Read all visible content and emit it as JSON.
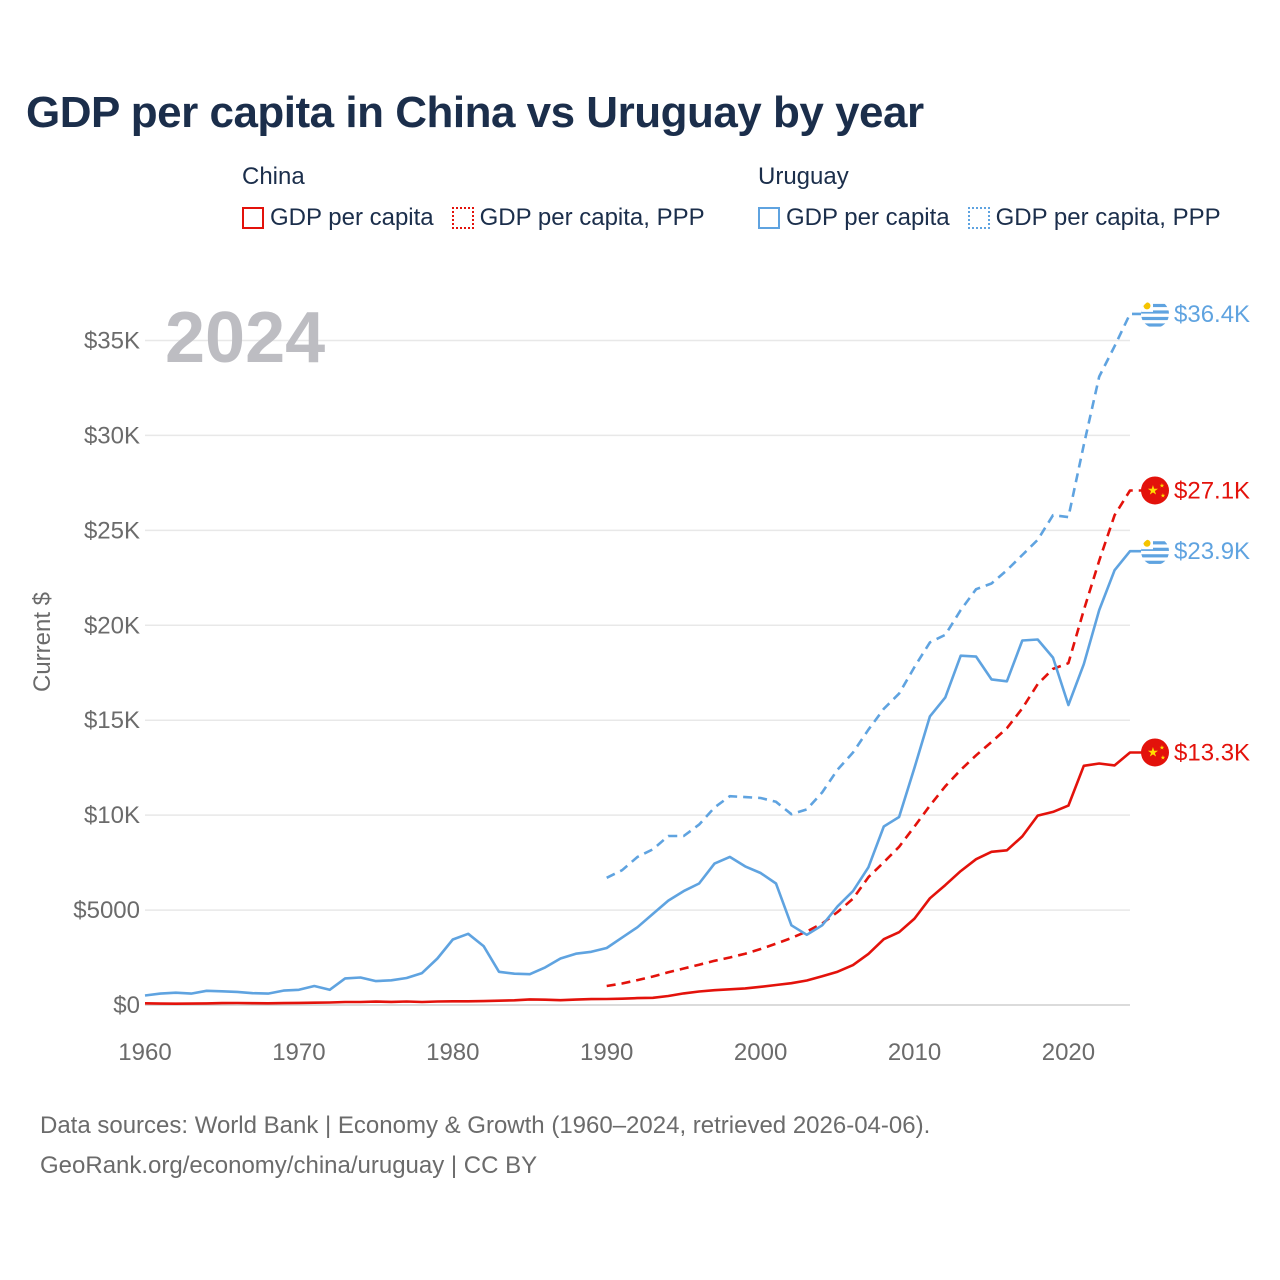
{
  "title": "GDP per capita in China vs Uruguay by year",
  "legend": {
    "groups": [
      {
        "country": "China",
        "color": "#e3120b",
        "items": [
          "GDP per capita",
          "GDP per capita, PPP"
        ]
      },
      {
        "country": "Uruguay",
        "color": "#5fa3e0",
        "items": [
          "GDP per capita",
          "GDP per capita, PPP"
        ]
      }
    ]
  },
  "source": {
    "line1": "Data sources: World Bank | Economy & Growth (1960–2024, retrieved 2026-04-06).",
    "line2": "GeoRank.org/economy/china/uruguay | CC BY"
  },
  "chart_data": {
    "type": "line",
    "title": "GDP per capita in China vs Uruguay by year",
    "year_label": "2024",
    "ylabel": "Current $",
    "xlabel": "",
    "xlim": [
      1960,
      2024
    ],
    "ylim": [
      0,
      36500
    ],
    "x_ticks": [
      1960,
      1970,
      1980,
      1990,
      2000,
      2010,
      2020
    ],
    "y_ticks": [
      {
        "value": 0,
        "label": "$0"
      },
      {
        "value": 5000,
        "label": "$5000"
      },
      {
        "value": 10000,
        "label": "$10K"
      },
      {
        "value": 15000,
        "label": "$15K"
      },
      {
        "value": 20000,
        "label": "$20K"
      },
      {
        "value": 25000,
        "label": "$25K"
      },
      {
        "value": 30000,
        "label": "$30K"
      },
      {
        "value": 35000,
        "label": "$35K"
      }
    ],
    "grid": true,
    "series": [
      {
        "name": "China GDP per capita",
        "country": "China",
        "style": "solid",
        "color": "#e3120b",
        "end_label": "$13.3K",
        "x": [
          1960,
          1961,
          1962,
          1963,
          1964,
          1965,
          1966,
          1967,
          1968,
          1969,
          1970,
          1971,
          1972,
          1973,
          1974,
          1975,
          1976,
          1977,
          1978,
          1979,
          1980,
          1981,
          1982,
          1983,
          1984,
          1985,
          1986,
          1987,
          1988,
          1989,
          1990,
          1991,
          1992,
          1993,
          1994,
          1995,
          1996,
          1997,
          1998,
          1999,
          2000,
          2001,
          2002,
          2003,
          2004,
          2005,
          2006,
          2007,
          2008,
          2009,
          2010,
          2011,
          2012,
          2013,
          2014,
          2015,
          2016,
          2017,
          2018,
          2019,
          2020,
          2021,
          2022,
          2023,
          2024
        ],
        "values": [
          89,
          76,
          70,
          74,
          85,
          98,
          104,
          96,
          91,
          100,
          113,
          119,
          132,
          157,
          160,
          178,
          165,
          185,
          156,
          183,
          195,
          197,
          203,
          225,
          250,
          294,
          281,
          252,
          284,
          311,
          318,
          333,
          366,
          377,
          473,
          609,
          709,
          782,
          829,
          873,
          959,
          1053,
          1149,
          1289,
          1509,
          1753,
          2099,
          2694,
          3468,
          3832,
          4550,
          5618,
          6317,
          7051,
          7679,
          8067,
          8148,
          8880,
          9977,
          10170,
          10500,
          12600,
          12720,
          12620,
          13300
        ]
      },
      {
        "name": "China GDP per capita, PPP",
        "country": "China",
        "style": "dashed",
        "color": "#e3120b",
        "end_label": "$27.1K",
        "x": [
          1990,
          1991,
          1992,
          1993,
          1994,
          1995,
          1996,
          1997,
          1998,
          1999,
          2000,
          2001,
          2002,
          2003,
          2004,
          2005,
          2006,
          2007,
          2008,
          2009,
          2010,
          2011,
          2012,
          2013,
          2014,
          2015,
          2016,
          2017,
          2018,
          2019,
          2020,
          2021,
          2022,
          2023,
          2024
        ],
        "values": [
          1000,
          1130,
          1310,
          1500,
          1720,
          1920,
          2120,
          2330,
          2500,
          2700,
          2950,
          3230,
          3530,
          3870,
          4290,
          4900,
          5600,
          6730,
          7520,
          8330,
          9400,
          10500,
          11520,
          12380,
          13150,
          13850,
          14580,
          15620,
          16900,
          17700,
          18000,
          20800,
          23400,
          25800,
          27100
        ]
      },
      {
        "name": "Uruguay GDP per capita",
        "country": "Uruguay",
        "style": "solid",
        "color": "#5fa3e0",
        "end_label": "$23.9K",
        "x": [
          1960,
          1961,
          1962,
          1963,
          1964,
          1965,
          1966,
          1967,
          1968,
          1969,
          1970,
          1971,
          1972,
          1973,
          1974,
          1975,
          1976,
          1977,
          1978,
          1979,
          1980,
          1981,
          1982,
          1983,
          1984,
          1985,
          1986,
          1987,
          1988,
          1989,
          1990,
          1991,
          1992,
          1993,
          1994,
          1995,
          1996,
          1997,
          1998,
          1999,
          2000,
          2001,
          2002,
          2003,
          2004,
          2005,
          2006,
          2007,
          2008,
          2009,
          2010,
          2011,
          2012,
          2013,
          2014,
          2015,
          2016,
          2017,
          2018,
          2019,
          2020,
          2021,
          2022,
          2023,
          2024
        ],
        "values": [
          500,
          600,
          650,
          600,
          750,
          720,
          690,
          620,
          600,
          760,
          800,
          1000,
          800,
          1400,
          1450,
          1260,
          1300,
          1420,
          1680,
          2450,
          3450,
          3750,
          3100,
          1750,
          1650,
          1620,
          1980,
          2450,
          2700,
          2800,
          3000,
          3550,
          4100,
          4800,
          5500,
          6000,
          6400,
          7450,
          7800,
          7300,
          6950,
          6400,
          4200,
          3700,
          4200,
          5200,
          6000,
          7250,
          9400,
          9900,
          12500,
          15200,
          16200,
          18400,
          18350,
          17150,
          17050,
          19200,
          19250,
          18300,
          15800,
          17950,
          20800,
          22900,
          23900
        ]
      },
      {
        "name": "Uruguay GDP per capita, PPP",
        "country": "Uruguay",
        "style": "dashed",
        "color": "#5fa3e0",
        "end_label": "$36.4K",
        "x": [
          1990,
          1991,
          1992,
          1993,
          1994,
          1995,
          1996,
          1997,
          1998,
          1999,
          2000,
          2001,
          2002,
          2003,
          2004,
          2005,
          2006,
          2007,
          2008,
          2009,
          2010,
          2011,
          2012,
          2013,
          2014,
          2015,
          2016,
          2017,
          2018,
          2019,
          2020,
          2021,
          2022,
          2023,
          2024
        ],
        "values": [
          6700,
          7100,
          7800,
          8200,
          8900,
          8900,
          9500,
          10400,
          11000,
          10950,
          10900,
          10700,
          10050,
          10300,
          11200,
          12400,
          13300,
          14500,
          15600,
          16400,
          17800,
          19100,
          19500,
          20800,
          21900,
          22200,
          22900,
          23700,
          24500,
          25800,
          25700,
          29500,
          33100,
          34700,
          36400
        ]
      }
    ]
  }
}
